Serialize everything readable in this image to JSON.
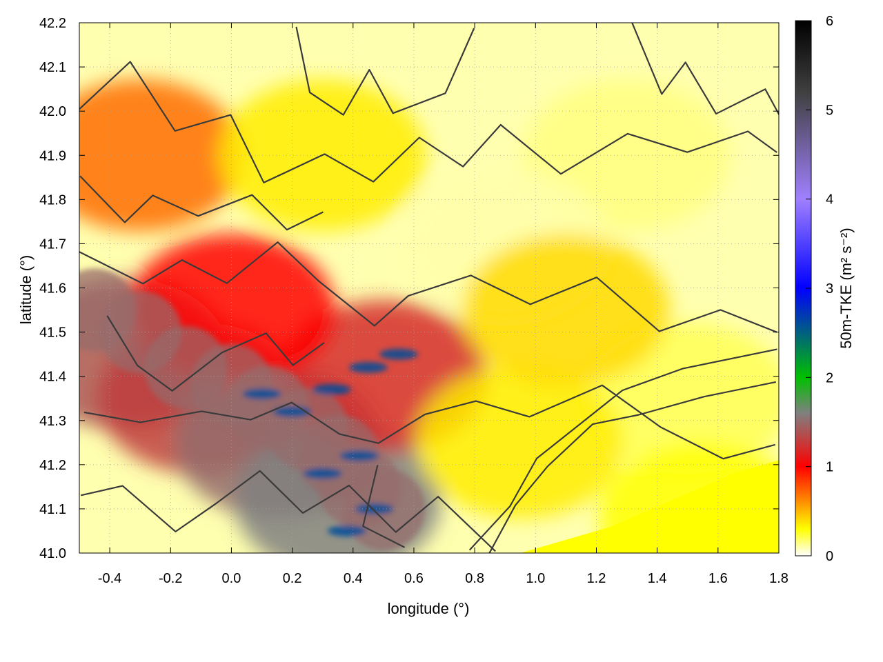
{
  "chart_data": {
    "type": "heatmap",
    "title": "",
    "xlabel": "longitude (°)",
    "ylabel": "latitude (°)",
    "xlim": [
      -0.5,
      1.8
    ],
    "ylim": [
      41.0,
      42.2
    ],
    "x_ticks": [
      "-0.4",
      "-0.2",
      "0.0",
      "0.2",
      "0.4",
      "0.6",
      "0.8",
      "1.0",
      "1.2",
      "1.4",
      "1.6",
      "1.8"
    ],
    "y_ticks": [
      "41.0",
      "41.1",
      "41.2",
      "41.3",
      "41.4",
      "41.5",
      "41.6",
      "41.7",
      "41.8",
      "41.9",
      "42.0",
      "42.1",
      "42.2"
    ],
    "grid": true,
    "colorbar": {
      "label": "50m-TKE (m² s⁻²)",
      "range": [
        0,
        6
      ],
      "ticks": [
        "0",
        "1",
        "2",
        "3",
        "4",
        "5",
        "6"
      ],
      "colors": [
        "#ffffff",
        "#ffff00",
        "#ff0000",
        "#808080",
        "#00c000",
        "#0000ff",
        "#a080ff",
        "#404040",
        "#000000"
      ],
      "color_stops": [
        0,
        0.3,
        1.0,
        1.6,
        2.0,
        3.0,
        4.0,
        5.2,
        6.0
      ]
    },
    "field_description": "Gridded 50 m turbulent kinetic energy with terrain elevation contours overlaid",
    "field_regions": [
      {
        "lon": -0.35,
        "lat": 41.45,
        "tke": 1.4
      },
      {
        "lon": -0.1,
        "lat": 41.35,
        "tke": 1.3
      },
      {
        "lon": 0.15,
        "lat": 41.25,
        "tke": 1.5
      },
      {
        "lon": 0.35,
        "lat": 41.12,
        "tke": 1.6
      },
      {
        "lon": 0.5,
        "lat": 41.4,
        "tke": 1.2
      },
      {
        "lon": 0.0,
        "lat": 41.55,
        "tke": 1.0
      },
      {
        "lon": -0.3,
        "lat": 41.9,
        "tke": 0.7
      },
      {
        "lon": 0.3,
        "lat": 41.9,
        "tke": 0.35
      },
      {
        "lon": 1.3,
        "lat": 41.9,
        "tke": 0.15
      },
      {
        "lon": 0.9,
        "lat": 41.7,
        "tke": 0.1
      },
      {
        "lon": 1.5,
        "lat": 41.35,
        "tke": 0.2
      },
      {
        "lon": 1.55,
        "lat": 41.08,
        "tke": 0.3
      },
      {
        "lon": 0.95,
        "lat": 41.25,
        "tke": 0.35
      },
      {
        "lon": 1.1,
        "lat": 41.55,
        "tke": 0.4
      }
    ]
  }
}
